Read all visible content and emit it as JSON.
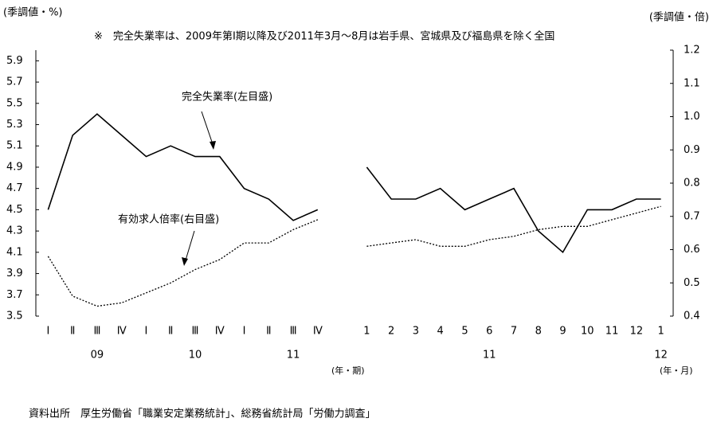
{
  "chart_data": {
    "type": "line",
    "left_unit": "(季調値・%)",
    "right_unit": "(季調値・倍)",
    "note": "※　完全失業率は、2009年第Ⅰ期以降及び2011年3月～8月は岩手県、宮城県及び福島県を除く全国",
    "categories": [
      "Ⅰ",
      "Ⅱ",
      "Ⅲ",
      "Ⅳ",
      "Ⅰ",
      "Ⅱ",
      "Ⅲ",
      "Ⅳ",
      "Ⅰ",
      "Ⅱ",
      "Ⅲ",
      "Ⅳ",
      null,
      "1",
      "2",
      "3",
      "4",
      "5",
      "6",
      "7",
      "8",
      "9",
      "10",
      "11",
      "12",
      "1"
    ],
    "year_labels": [
      null,
      null,
      "09",
      null,
      null,
      null,
      "10",
      null,
      null,
      null,
      "11",
      null,
      null,
      null,
      null,
      null,
      null,
      null,
      "11",
      null,
      null,
      null,
      null,
      null,
      null,
      "12"
    ],
    "x_units": [
      "(年・期)",
      "(年・月)"
    ],
    "series": [
      {
        "name": "完全失業率(左目盛)",
        "color": "#000000",
        "line_style": "solid",
        "axis": "y",
        "values": [
          4.5,
          5.2,
          5.4,
          5.2,
          5.0,
          5.1,
          5.0,
          5.0,
          4.7,
          4.6,
          4.4,
          4.5,
          null,
          4.9,
          4.6,
          4.6,
          4.7,
          4.5,
          4.6,
          4.7,
          4.3,
          4.1,
          4.5,
          4.5,
          4.6,
          4.6
        ]
      },
      {
        "name": "有効求人倍率(右目盛)",
        "color": "#000000",
        "line_style": "dotted",
        "axis": "y2",
        "values": [
          0.58,
          0.46,
          0.43,
          0.44,
          0.47,
          0.5,
          0.54,
          0.57,
          0.62,
          0.62,
          0.66,
          0.69,
          null,
          0.61,
          0.62,
          0.63,
          0.61,
          0.61,
          0.63,
          0.64,
          0.66,
          0.67,
          0.67,
          0.69,
          0.71,
          0.73
        ]
      }
    ],
    "ylim": [
      3.5,
      6.0
    ],
    "yticks": [
      3.5,
      3.7,
      3.9,
      4.1,
      4.3,
      4.5,
      4.7,
      4.9,
      5.1,
      5.3,
      5.5,
      5.7,
      5.9
    ],
    "y2lim": [
      0.4,
      1.2
    ],
    "y2ticks": [
      0.4,
      0.5,
      0.6,
      0.7,
      0.8,
      0.9,
      {
        "value": 1,
        "label": "1.0"
      },
      1.1,
      1.2
    ],
    "grid": false,
    "source": "資料出所　厚生労働省「職業安定業務統計」、総務省統計局「労働力調査」"
  }
}
